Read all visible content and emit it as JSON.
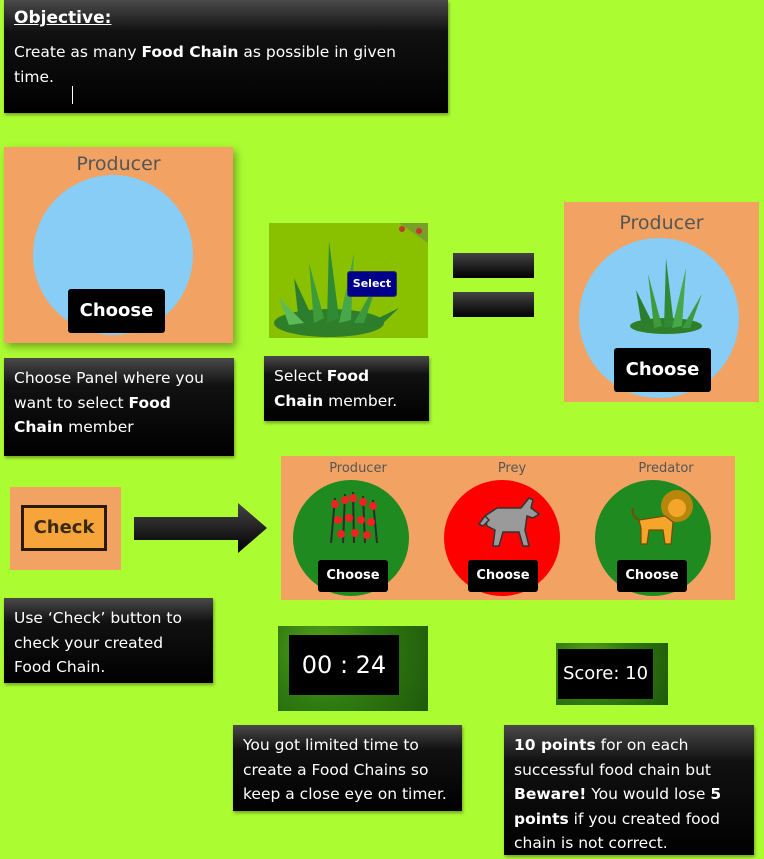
{
  "objective": {
    "heading": "Objective:",
    "line_pre": "Create as many ",
    "line_bold": "Food Chain",
    "line_post": " as possible in given time."
  },
  "step1": {
    "panel_title": "Producer",
    "choose_label": "Choose",
    "caption_pre": "Choose Panel where you want to select ",
    "caption_bold": "Food Chain",
    "caption_post": " member"
  },
  "step2": {
    "select_label": "Select",
    "caption_pre": "Select ",
    "caption_bold": "Food Chain",
    "caption_post": " member."
  },
  "result": {
    "panel_title": "Producer",
    "choose_label": "Choose"
  },
  "check": {
    "button_label": "Check",
    "caption": "Use ‘Check’ button to check your created Food Chain."
  },
  "chain": {
    "slots": [
      {
        "title": "Producer",
        "choose_label": "Choose",
        "circle_color": "#1f8a1f"
      },
      {
        "title": "Prey",
        "choose_label": "Choose",
        "circle_color": "#ff0000"
      },
      {
        "title": "Predator",
        "choose_label": "Choose",
        "circle_color": "#1f8a1f"
      }
    ]
  },
  "timer": {
    "value": "00 : 24",
    "caption": "You got limited time to create a Food Chains so keep a close eye on timer."
  },
  "score": {
    "label": "Score: 10",
    "caption_b1": "10 points",
    "caption_t1": " for on each successful food chain but ",
    "caption_b2": "Beware!",
    "caption_t2": " You would lose ",
    "caption_b3": "5 points",
    "caption_t3": " if you created food chain is not correct."
  },
  "colors": {
    "background": "#acfc32",
    "panel": "#f2a363",
    "circle_blue": "#87cdf5",
    "select_button": "#00008b",
    "check_border": "#2a1a00",
    "check_fill": "#f7a43a"
  }
}
